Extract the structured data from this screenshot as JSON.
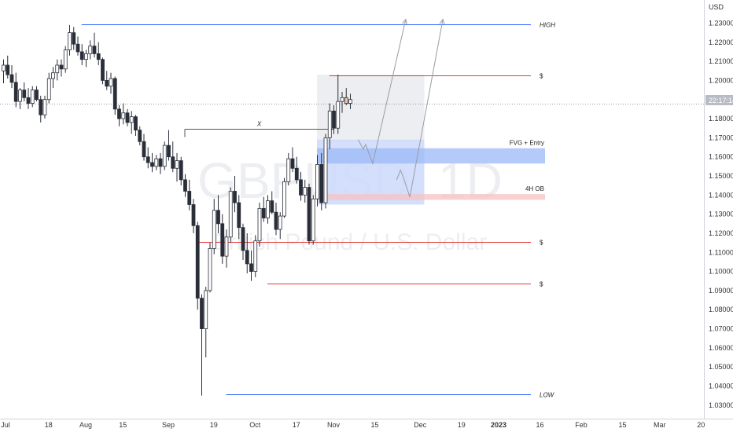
{
  "chart_data": {
    "type": "candlestick",
    "currency": "USD",
    "watermark": {
      "symbol": "GBPUSD, 1D",
      "description": "British Pound / U.S. Dollar"
    },
    "last_price_tag": "22:17:14",
    "y_ticks": [
      "1.23000",
      "1.22000",
      "1.21000",
      "1.20000",
      "1.19000",
      "1.18000",
      "1.17000",
      "1.16000",
      "1.15000",
      "1.14000",
      "1.13000",
      "1.12000",
      "1.11000",
      "1.10000",
      "1.09000",
      "1.08000",
      "1.07000",
      "1.06000",
      "1.05000",
      "1.04000",
      "1.03000"
    ],
    "x_ticks": [
      "Jul",
      "18",
      "Aug",
      "15",
      "Sep",
      "19",
      "Oct",
      "17",
      "Nov",
      "15",
      "Dec",
      "19",
      "2023",
      "16",
      "Feb",
      "15",
      "Mar",
      "20"
    ],
    "ylim": [
      1.025,
      1.238
    ],
    "levels": [
      {
        "label": "HIGH",
        "price": 1.2295,
        "color": "#2962ff"
      },
      {
        "label": "$",
        "price": 1.2025,
        "color": "#e53935"
      },
      {
        "label": "$",
        "price": 1.1155,
        "color": "#e53935"
      },
      {
        "label": "$",
        "price": 1.0935,
        "color": "#e53935"
      },
      {
        "label": "LOW",
        "price": 1.0355,
        "color": "#2962ff"
      }
    ],
    "zones": [
      {
        "label": "FVG + Entry",
        "top": 1.1645,
        "bottom": 1.1565,
        "color": "#9bb9f7"
      },
      {
        "label": "4H OB",
        "top": 1.1405,
        "bottom": 1.1375,
        "color": "#f7c2c2"
      }
    ],
    "bos_label": "X",
    "candles": [
      [
        1.205,
        1.211,
        1.1985,
        1.208
      ],
      [
        1.208,
        1.213,
        1.201,
        1.203
      ],
      [
        1.203,
        1.208,
        1.196,
        1.199
      ],
      [
        1.199,
        1.204,
        1.186,
        1.189
      ],
      [
        1.189,
        1.196,
        1.185,
        1.195
      ],
      [
        1.195,
        1.199,
        1.189,
        1.191
      ],
      [
        1.191,
        1.196,
        1.185,
        1.188
      ],
      [
        1.188,
        1.197,
        1.186,
        1.195
      ],
      [
        1.195,
        1.197,
        1.189,
        1.19
      ],
      [
        1.19,
        1.192,
        1.178,
        1.182
      ],
      [
        1.182,
        1.192,
        1.18,
        1.19
      ],
      [
        1.19,
        1.204,
        1.188,
        1.201
      ],
      [
        1.201,
        1.207,
        1.196,
        1.204
      ],
      [
        1.204,
        1.211,
        1.2,
        1.208
      ],
      [
        1.208,
        1.211,
        1.202,
        1.206
      ],
      [
        1.206,
        1.218,
        1.204,
        1.216
      ],
      [
        1.216,
        1.229,
        1.213,
        1.225
      ],
      [
        1.225,
        1.228,
        1.216,
        1.219
      ],
      [
        1.219,
        1.223,
        1.213,
        1.215
      ],
      [
        1.215,
        1.219,
        1.208,
        1.211
      ],
      [
        1.211,
        1.216,
        1.207,
        1.214
      ],
      [
        1.214,
        1.221,
        1.211,
        1.218
      ],
      [
        1.218,
        1.225,
        1.212,
        1.214
      ],
      [
        1.214,
        1.22,
        1.208,
        1.211
      ],
      [
        1.211,
        1.212,
        1.198,
        1.2
      ],
      [
        1.2,
        1.205,
        1.195,
        1.197
      ],
      [
        1.197,
        1.204,
        1.193,
        1.201
      ],
      [
        1.201,
        1.202,
        1.182,
        1.185
      ],
      [
        1.185,
        1.187,
        1.176,
        1.18
      ],
      [
        1.18,
        1.188,
        1.177,
        1.183
      ],
      [
        1.183,
        1.185,
        1.176,
        1.178
      ],
      [
        1.178,
        1.184,
        1.172,
        1.181
      ],
      [
        1.181,
        1.182,
        1.171,
        1.174
      ],
      [
        1.174,
        1.176,
        1.166,
        1.168
      ],
      [
        1.168,
        1.172,
        1.158,
        1.16
      ],
      [
        1.16,
        1.165,
        1.154,
        1.157
      ],
      [
        1.157,
        1.162,
        1.152,
        1.155
      ],
      [
        1.155,
        1.161,
        1.153,
        1.159
      ],
      [
        1.159,
        1.162,
        1.151,
        1.155
      ],
      [
        1.155,
        1.168,
        1.153,
        1.166
      ],
      [
        1.166,
        1.174,
        1.158,
        1.16
      ],
      [
        1.16,
        1.168,
        1.152,
        1.154
      ],
      [
        1.154,
        1.162,
        1.147,
        1.158
      ],
      [
        1.158,
        1.16,
        1.145,
        1.148
      ],
      [
        1.148,
        1.151,
        1.139,
        1.142
      ],
      [
        1.142,
        1.148,
        1.132,
        1.135
      ],
      [
        1.135,
        1.138,
        1.12,
        1.124
      ],
      [
        1.124,
        1.126,
        1.08,
        1.086
      ],
      [
        1.086,
        1.088,
        1.035,
        1.07
      ],
      [
        1.07,
        1.092,
        1.055,
        1.09
      ],
      [
        1.09,
        1.115,
        1.089,
        1.112
      ],
      [
        1.112,
        1.138,
        1.109,
        1.132
      ],
      [
        1.132,
        1.14,
        1.12,
        1.125
      ],
      [
        1.125,
        1.13,
        1.104,
        1.108
      ],
      [
        1.108,
        1.122,
        1.102,
        1.118
      ],
      [
        1.118,
        1.144,
        1.115,
        1.142
      ],
      [
        1.142,
        1.15,
        1.131,
        1.136
      ],
      [
        1.136,
        1.14,
        1.117,
        1.123
      ],
      [
        1.123,
        1.125,
        1.106,
        1.111
      ],
      [
        1.111,
        1.12,
        1.099,
        1.104
      ],
      [
        1.104,
        1.111,
        1.095,
        1.1
      ],
      [
        1.1,
        1.119,
        1.097,
        1.116
      ],
      [
        1.116,
        1.136,
        1.113,
        1.133
      ],
      [
        1.133,
        1.139,
        1.126,
        1.128
      ],
      [
        1.128,
        1.14,
        1.125,
        1.137
      ],
      [
        1.137,
        1.142,
        1.13,
        1.131
      ],
      [
        1.131,
        1.136,
        1.119,
        1.122
      ],
      [
        1.122,
        1.131,
        1.117,
        1.129
      ],
      [
        1.129,
        1.149,
        1.128,
        1.147
      ],
      [
        1.147,
        1.162,
        1.145,
        1.159
      ],
      [
        1.159,
        1.165,
        1.152,
        1.154
      ],
      [
        1.154,
        1.16,
        1.146,
        1.148
      ],
      [
        1.148,
        1.152,
        1.137,
        1.14
      ],
      [
        1.14,
        1.148,
        1.136,
        1.144
      ],
      [
        1.144,
        1.146,
        1.114,
        1.116
      ],
      [
        1.116,
        1.14,
        1.114,
        1.138
      ],
      [
        1.138,
        1.161,
        1.134,
        1.156
      ],
      [
        1.156,
        1.162,
        1.132,
        1.136
      ],
      [
        1.136,
        1.172,
        1.133,
        1.17
      ],
      [
        1.17,
        1.188,
        1.164,
        1.184
      ],
      [
        1.184,
        1.187,
        1.172,
        1.175
      ],
      [
        1.175,
        1.203,
        1.172,
        1.189
      ],
      [
        1.189,
        1.194,
        1.183,
        1.191
      ],
      [
        1.191,
        1.196,
        1.187,
        1.188
      ],
      [
        1.188,
        1.193,
        1.185,
        1.19
      ]
    ],
    "projection": [
      {
        "bar": 86.0,
        "price": 1.169
      },
      {
        "bar": 87.2,
        "price": 1.164
      },
      {
        "bar": 87.8,
        "price": 1.1665
      },
      {
        "bar": 89.5,
        "price": 1.1565
      },
      {
        "bar": 97.5,
        "price": 1.232
      }
    ],
    "projection2": [
      {
        "bar": 95.3,
        "price": 1.148
      },
      {
        "bar": 96.2,
        "price": 1.153
      },
      {
        "bar": 96.8,
        "price": 1.15
      },
      {
        "bar": 98.5,
        "price": 1.139
      },
      {
        "bar": 106.5,
        "price": 1.232
      }
    ]
  }
}
